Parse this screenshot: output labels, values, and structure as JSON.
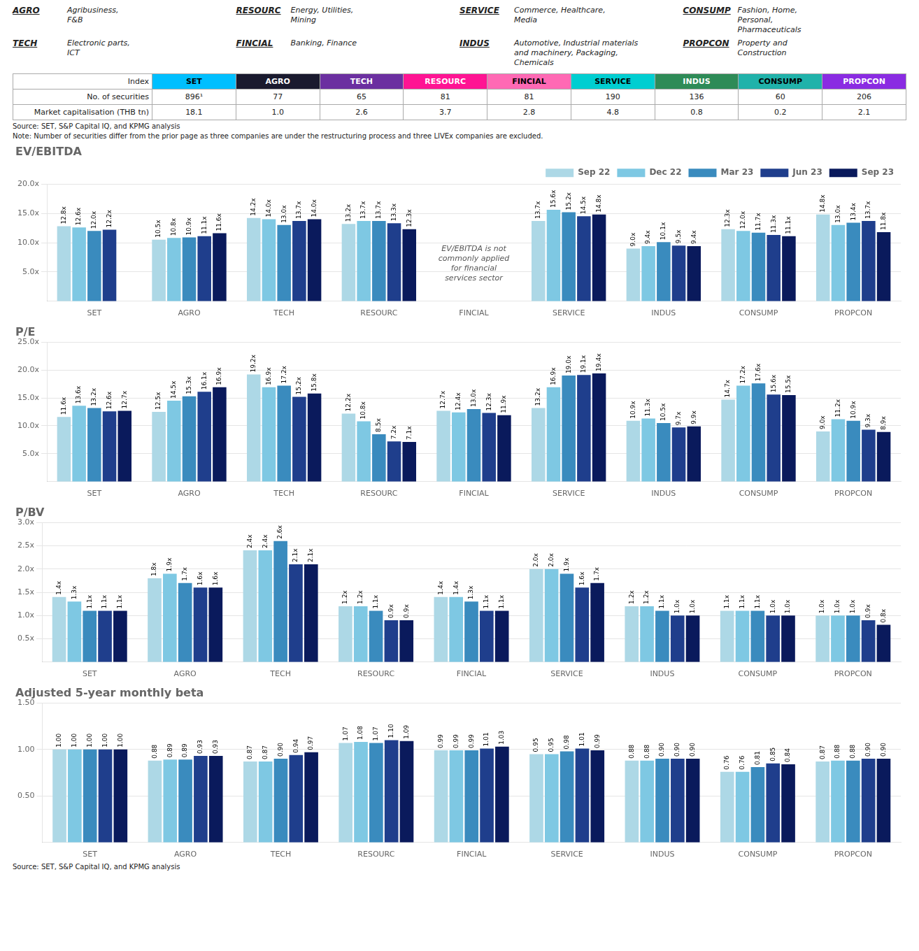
{
  "sector_descriptions": [
    [
      {
        "abbr": "AGRO",
        "description": "Agribusiness,\nF&B"
      },
      {
        "abbr": "RESOURC",
        "description": "Energy, Utilities,\nMining"
      },
      {
        "abbr": "SERVICE",
        "description": "Commerce, Healthcare,\nMedia"
      },
      {
        "abbr": "CONSUMP",
        "description": "Fashion, Home,\nPersonal,\nPharmaceuticals"
      }
    ],
    [
      {
        "abbr": "TECH",
        "description": "Electronic parts,\nICT"
      },
      {
        "abbr": "FINCIAL",
        "description": "Banking, Finance"
      },
      {
        "abbr": "INDUS",
        "description": "Automotive, Industrial materials\nand machinery, Packaging,\nChemicals"
      },
      {
        "abbr": "PROPCON",
        "description": "Property and\nConstruction"
      }
    ]
  ],
  "table": {
    "row_labels": [
      "Index",
      "No. of securities",
      "Market capitalisation (THB tn)"
    ],
    "header": [
      "SET",
      "AGRO",
      "TECH",
      "RESOURC",
      "FINCIAL",
      "SERVICE",
      "INDUS",
      "CONSUMP",
      "PROPCON"
    ],
    "header_colors": [
      "#00BFFF",
      "#1A1A2E",
      "#6B2FA0",
      "#FF1493",
      "#FF69B4",
      "#00CED1",
      "#2E8B57",
      "#20B2AA",
      "#8A2BE2"
    ],
    "header_text_colors": [
      "black",
      "white",
      "white",
      "white",
      "black",
      "black",
      "white",
      "black",
      "white"
    ],
    "rows": [
      [
        "896¹",
        "77",
        "65",
        "81",
        "81",
        "190",
        "136",
        "60",
        "206"
      ],
      [
        "18.1",
        "1.0",
        "2.6",
        "3.7",
        "2.8",
        "4.8",
        "0.8",
        "0.2",
        "2.1"
      ]
    ]
  },
  "source": "Source: SET, S&P Capital IQ, and KPMG analysis",
  "note": "Note: Number of securities differ from the prior page as three companies are under the restructuring process and three LIVEx companies are excluded.",
  "chart_data": [
    {
      "type": "bar",
      "title": "EV/EBITDA",
      "categories": [
        "SET",
        "AGRO",
        "TECH",
        "RESOURC",
        "FINCIAL",
        "SERVICE",
        "INDUS",
        "CONSUMP",
        "PROPCON"
      ],
      "series": [
        {
          "name": "Sep 22",
          "color": "#ADD8E6",
          "values": [
            12.8,
            10.5,
            14.2,
            13.2,
            null,
            13.7,
            9.0,
            12.3,
            14.8
          ],
          "value_labels": [
            "12.8x",
            "10.5x",
            "14.2x",
            "13.2x",
            null,
            "13.7x",
            "9.0x",
            "12.3x",
            "14.8x"
          ]
        },
        {
          "name": "Dec 22",
          "color": "#7EC8E3",
          "values": [
            12.6,
            10.8,
            14.0,
            13.7,
            null,
            15.6,
            9.4,
            12.0,
            13.0
          ],
          "value_labels": [
            "12.6x",
            "10.8x",
            "14.0x",
            "13.7x",
            null,
            "15.6x",
            "9.4x",
            "12.0x",
            "13.0x"
          ]
        },
        {
          "name": "Mar 23",
          "color": "#3A8BBE",
          "values": [
            12.0,
            10.9,
            13.0,
            13.7,
            null,
            15.2,
            10.1,
            11.7,
            13.4
          ],
          "value_labels": [
            "12.0x",
            "10.9x",
            "13.0x",
            "13.7x",
            null,
            "15.2x",
            "10.1x",
            "11.7x",
            "13.4x"
          ]
        },
        {
          "name": "Jun 23",
          "color": "#1F3E8C",
          "values": [
            12.2,
            11.1,
            13.7,
            13.3,
            null,
            14.5,
            9.5,
            11.3,
            13.7
          ],
          "value_labels": [
            "12.2x",
            "11.1x",
            "13.7x",
            "13.3x",
            null,
            "14.5x",
            "9.5x",
            "11.3x",
            "13.7x"
          ]
        },
        {
          "name": "Sep 23",
          "color": "#0A1A5C",
          "values": [
            null,
            11.6,
            14.0,
            12.3,
            null,
            14.8,
            9.4,
            11.1,
            11.8
          ],
          "value_labels": [
            null,
            "11.6x",
            "14.0x",
            "12.3x",
            null,
            "14.8x",
            "9.4x",
            "11.1x",
            "11.8x"
          ]
        }
      ],
      "ylim": [
        0,
        20
      ],
      "yticks": [
        {
          "value": 5.0,
          "label": "5.0x"
        },
        {
          "value": 10.0,
          "label": "10.0x"
        },
        {
          "value": 15.0,
          "label": "15.0x"
        },
        {
          "value": 20.0,
          "label": "20.0x"
        }
      ],
      "grid": true,
      "data_labels": true,
      "legend": "upper right",
      "annotations": [
        {
          "text": "EV/EBITDA is not\ncommonly applied\nfor financial\nservices sector",
          "category": "FINCIAL"
        }
      ]
    },
    {
      "type": "bar",
      "title": "P/E",
      "categories": [
        "SET",
        "AGRO",
        "TECH",
        "RESOURC",
        "FINCIAL",
        "SERVICE",
        "INDUS",
        "CONSUMP",
        "PROPCON"
      ],
      "series": [
        {
          "name": "Sep 22",
          "color": "#ADD8E6",
          "values": [
            11.6,
            12.5,
            19.2,
            12.2,
            12.7,
            13.2,
            10.9,
            14.7,
            9.0
          ],
          "value_labels": [
            "11.6x",
            "12.5x",
            "19.2x",
            "12.2x",
            "12.7x",
            "13.2x",
            "10.9x",
            "14.7x",
            "9.0x"
          ]
        },
        {
          "name": "Dec 22",
          "color": "#7EC8E3",
          "values": [
            13.6,
            14.5,
            16.9,
            10.8,
            12.4,
            16.9,
            11.3,
            17.2,
            11.2
          ],
          "value_labels": [
            "13.6x",
            "14.5x",
            "16.9x",
            "10.8x",
            "12.4x",
            "16.9x",
            "11.3x",
            "17.2x",
            "11.2x"
          ]
        },
        {
          "name": "Mar 23",
          "color": "#3A8BBE",
          "values": [
            13.2,
            15.3,
            17.2,
            8.5,
            13.0,
            19.0,
            10.5,
            17.6,
            10.9
          ],
          "value_labels": [
            "13.2x",
            "15.3x",
            "17.2x",
            "8.5x",
            "13.0x",
            "19.0x",
            "10.5x",
            "17.6x",
            "10.9x"
          ]
        },
        {
          "name": "Jun 23",
          "color": "#1F3E8C",
          "values": [
            12.6,
            16.1,
            15.2,
            7.2,
            12.3,
            19.1,
            9.7,
            15.6,
            9.3
          ],
          "value_labels": [
            "12.6x",
            "16.1x",
            "15.2x",
            "7.2x",
            "12.3x",
            "19.1x",
            "9.7x",
            "15.6x",
            "9.3x"
          ]
        },
        {
          "name": "Sep 23",
          "color": "#0A1A5C",
          "values": [
            12.7,
            16.9,
            15.8,
            7.1,
            11.9,
            19.4,
            9.9,
            15.5,
            8.9
          ],
          "value_labels": [
            "12.7x",
            "16.9x",
            "15.8x",
            "7.1x",
            "11.9x",
            "19.4x",
            "9.9x",
            "15.5x",
            "8.9x"
          ]
        }
      ],
      "ylim": [
        0,
        25
      ],
      "yticks": [
        {
          "value": 5.0,
          "label": "5.0x"
        },
        {
          "value": 10.0,
          "label": "10.0x"
        },
        {
          "value": 15.0,
          "label": "15.0x"
        },
        {
          "value": 20.0,
          "label": "20.0x"
        },
        {
          "value": 25.0,
          "label": "25.0x"
        }
      ],
      "grid": true,
      "data_labels": true
    },
    {
      "type": "bar",
      "title": "P/BV",
      "categories": [
        "SET",
        "AGRO",
        "TECH",
        "RESOURC",
        "FINCIAL",
        "SERVICE",
        "INDUS",
        "CONSUMP",
        "PROPCON"
      ],
      "series": [
        {
          "name": "Sep 22",
          "color": "#ADD8E6",
          "values": [
            1.4,
            1.8,
            2.4,
            1.2,
            1.4,
            2.0,
            1.2,
            1.1,
            1.0
          ],
          "value_labels": [
            "1.4x",
            "1.8x",
            "2.4x",
            "1.2x",
            "1.4x",
            "2.0x",
            "1.2x",
            "1.1x",
            "1.0x"
          ]
        },
        {
          "name": "Dec 22",
          "color": "#7EC8E3",
          "values": [
            1.3,
            1.9,
            2.4,
            1.2,
            1.4,
            2.0,
            1.2,
            1.1,
            1.0
          ],
          "value_labels": [
            "1.3x",
            "1.9x",
            "2.4x",
            "1.2x",
            "1.4x",
            "2.0x",
            "1.2x",
            "1.1x",
            "1.0x"
          ]
        },
        {
          "name": "Mar 23",
          "color": "#3A8BBE",
          "values": [
            1.1,
            1.7,
            2.6,
            1.1,
            1.3,
            1.9,
            1.1,
            1.1,
            1.0
          ],
          "value_labels": [
            "1.1x",
            "1.7x",
            "2.6x",
            "1.1x",
            "1.3x",
            "1.9x",
            "1.1x",
            "1.1x",
            "1.0x"
          ]
        },
        {
          "name": "Jun 23",
          "color": "#1F3E8C",
          "values": [
            1.1,
            1.6,
            2.1,
            0.9,
            1.1,
            1.6,
            1.0,
            1.0,
            0.9
          ],
          "value_labels": [
            "1.1x",
            "1.6x",
            "2.1x",
            "0.9x",
            "1.1x",
            "1.6x",
            "1.0x",
            "1.0x",
            "0.9x"
          ]
        },
        {
          "name": "Sep 23",
          "color": "#0A1A5C",
          "values": [
            1.1,
            1.6,
            2.1,
            0.9,
            1.1,
            1.7,
            1.0,
            1.0,
            0.8
          ],
          "value_labels": [
            "1.1x",
            "1.6x",
            "2.1x",
            "0.9x",
            "1.1x",
            "1.7x",
            "1.0x",
            "1.0x",
            "0.8x"
          ]
        }
      ],
      "ylim": [
        0,
        3.0
      ],
      "yticks": [
        {
          "value": 0.5,
          "label": "0.5x"
        },
        {
          "value": 1.0,
          "label": "1.0x"
        },
        {
          "value": 1.5,
          "label": "1.5x"
        },
        {
          "value": 2.0,
          "label": "2.0x"
        },
        {
          "value": 2.5,
          "label": "2.5x"
        },
        {
          "value": 3.0,
          "label": "3.0x"
        }
      ],
      "grid": true,
      "data_labels": true
    },
    {
      "type": "bar",
      "title": "Adjusted 5-year monthly beta",
      "categories": [
        "SET",
        "AGRO",
        "TECH",
        "RESOURC",
        "FINCIAL",
        "SERVICE",
        "INDUS",
        "CONSUMP",
        "PROPCON"
      ],
      "series": [
        {
          "name": "Sep 22",
          "color": "#ADD8E6",
          "values": [
            1.0,
            0.88,
            0.87,
            1.07,
            0.99,
            0.95,
            0.88,
            0.76,
            0.87
          ],
          "value_labels": [
            "1.00",
            "0.88",
            "0.87",
            "1.07",
            "0.99",
            "0.95",
            "0.88",
            "0.76",
            "0.87"
          ]
        },
        {
          "name": "Dec 22",
          "color": "#7EC8E3",
          "values": [
            1.0,
            0.89,
            0.87,
            1.08,
            0.99,
            0.95,
            0.88,
            0.76,
            0.88
          ],
          "value_labels": [
            "1.00",
            "0.89",
            "0.87",
            "1.08",
            "0.99",
            "0.95",
            "0.88",
            "0.76",
            "0.88"
          ]
        },
        {
          "name": "Mar 23",
          "color": "#3A8BBE",
          "values": [
            1.0,
            0.89,
            0.9,
            1.07,
            0.99,
            0.98,
            0.9,
            0.81,
            0.88
          ],
          "value_labels": [
            "1.00",
            "0.89",
            "0.90",
            "1.07",
            "0.99",
            "0.98",
            "0.90",
            "0.81",
            "0.88"
          ]
        },
        {
          "name": "Jun 23",
          "color": "#1F3E8C",
          "values": [
            1.0,
            0.93,
            0.94,
            1.1,
            1.01,
            1.01,
            0.9,
            0.85,
            0.9
          ],
          "value_labels": [
            "1.00",
            "0.93",
            "0.94",
            "1.10",
            "1.01",
            "1.01",
            "0.90",
            "0.85",
            "0.90"
          ]
        },
        {
          "name": "Sep 23",
          "color": "#0A1A5C",
          "values": [
            1.0,
            0.93,
            0.97,
            1.09,
            1.03,
            0.99,
            0.9,
            0.84,
            0.9
          ],
          "value_labels": [
            "1.00",
            "0.93",
            "0.97",
            "1.09",
            "1.03",
            "0.99",
            "0.90",
            "0.84",
            "0.90"
          ]
        }
      ],
      "ylim": [
        0,
        1.5
      ],
      "yticks": [
        {
          "value": 0.5,
          "label": "0.50"
        },
        {
          "value": 1.0,
          "label": "1.00"
        },
        {
          "value": 1.5,
          "label": "1.50"
        }
      ],
      "grid": true,
      "data_labels": true
    }
  ]
}
